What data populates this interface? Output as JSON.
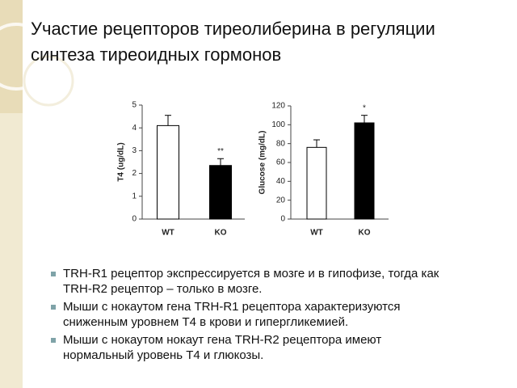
{
  "slide": {
    "title": [
      "Участие рецепторов тиреолиберина в регуляции",
      "синтеза тиреоидных гормонов"
    ],
    "bullets": [
      [
        "TRH-R1 рецептор экспрессируется в мозге и в гипофизе, тогда как",
        "TRH-R2 рецептор – только в мозге."
      ],
      [
        "Мыши с нокаутом гена TRH-R1 рецептора характеризуются",
        "сниженным уровнем Т4 в крови и гипергликемией."
      ],
      [
        "Мыши с нокаутом нокаут гена TRH-R2 рецептора имеют",
        "нормальный уровень Т4 и глюкозы."
      ]
    ]
  },
  "chart_data": [
    {
      "type": "bar",
      "y_label": "T4 (ug/dL)",
      "categories": [
        "WT",
        "KO"
      ],
      "values": [
        4.1,
        2.35
      ],
      "errors": [
        0.45,
        0.3
      ],
      "colors": [
        "#ffffff",
        "#000000"
      ],
      "ylim": [
        0,
        5
      ],
      "yticks": [
        0,
        1,
        2,
        3,
        4,
        5
      ],
      "annotation": "**"
    },
    {
      "type": "bar",
      "y_label": "Glucose (mg/dL)",
      "categories": [
        "WT",
        "KO"
      ],
      "values": [
        76,
        102
      ],
      "errors": [
        8,
        8
      ],
      "colors": [
        "#ffffff",
        "#000000"
      ],
      "ylim": [
        0,
        120
      ],
      "yticks": [
        0,
        20,
        40,
        60,
        80,
        100,
        120
      ],
      "annotation": "*"
    }
  ]
}
